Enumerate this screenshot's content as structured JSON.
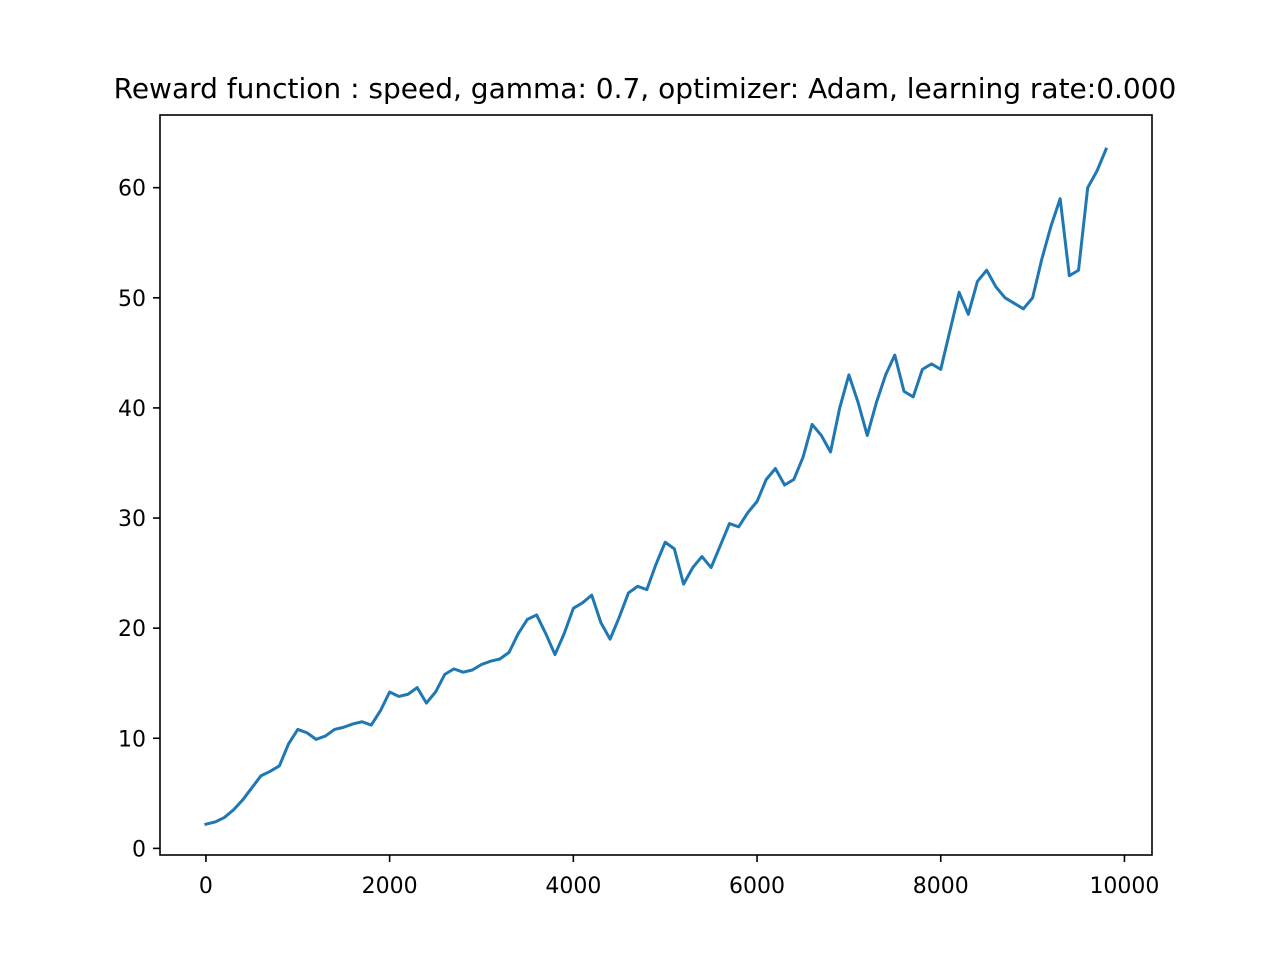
{
  "chart_data": {
    "type": "line",
    "title": "Reward function : speed, gamma: 0.7, optimizer: Adam, learning rate:0.000",
    "xlabel": "",
    "ylabel": "",
    "xlim": [
      -500,
      10300
    ],
    "ylim": [
      -0.6,
      66.6
    ],
    "xticks": [
      0,
      2000,
      4000,
      6000,
      8000,
      10000
    ],
    "xtick_labels": [
      "0",
      "2000",
      "4000",
      "6000",
      "8000",
      "10000"
    ],
    "yticks": [
      0,
      10,
      20,
      30,
      40,
      50,
      60
    ],
    "ytick_labels": [
      "0",
      "10",
      "20",
      "30",
      "40",
      "50",
      "60"
    ],
    "grid": false,
    "legend": "none",
    "series": [
      {
        "color": "#1f77b4",
        "x": [
          0,
          100,
          200,
          300,
          400,
          500,
          600,
          700,
          800,
          900,
          1000,
          1100,
          1200,
          1300,
          1400,
          1500,
          1600,
          1700,
          1800,
          1900,
          2000,
          2100,
          2200,
          2300,
          2400,
          2500,
          2600,
          2700,
          2800,
          2900,
          3000,
          3100,
          3200,
          3300,
          3400,
          3500,
          3600,
          3700,
          3800,
          3900,
          4000,
          4100,
          4200,
          4300,
          4400,
          4500,
          4600,
          4700,
          4800,
          4900,
          5000,
          5100,
          5200,
          5300,
          5400,
          5500,
          5600,
          5700,
          5800,
          5900,
          6000,
          6100,
          6200,
          6300,
          6400,
          6500,
          6600,
          6700,
          6800,
          6900,
          7000,
          7100,
          7200,
          7300,
          7400,
          7500,
          7600,
          7700,
          7800,
          7900,
          8000,
          8100,
          8200,
          8300,
          8400,
          8500,
          8600,
          8700,
          8800,
          8900,
          9000,
          9100,
          9200,
          9300,
          9400,
          9500,
          9600,
          9700,
          9800
        ],
        "y": [
          2.2,
          2.4,
          2.8,
          3.5,
          4.4,
          5.5,
          6.6,
          7.0,
          7.5,
          9.5,
          10.8,
          10.5,
          9.9,
          10.2,
          10.8,
          11.0,
          11.3,
          11.5,
          11.2,
          12.5,
          14.2,
          13.8,
          14.0,
          14.6,
          13.2,
          14.2,
          15.8,
          16.3,
          16.0,
          16.2,
          16.7,
          17.0,
          17.2,
          17.8,
          19.5,
          20.8,
          21.2,
          19.5,
          17.6,
          19.5,
          21.8,
          22.3,
          23.0,
          20.5,
          19.0,
          21.0,
          23.2,
          23.8,
          23.5,
          25.8,
          27.8,
          27.2,
          24.0,
          25.5,
          26.5,
          25.5,
          27.5,
          29.5,
          29.2,
          30.5,
          31.5,
          33.5,
          34.5,
          33.0,
          33.5,
          35.5,
          38.5,
          37.5,
          36.0,
          40.0,
          43.0,
          40.5,
          37.5,
          40.5,
          43.0,
          44.8,
          41.5,
          41.0,
          43.5,
          44.0,
          43.5,
          47.0,
          50.5,
          48.5,
          51.5,
          52.5,
          51.0,
          50.0,
          49.5,
          49.0,
          50.0,
          53.5,
          56.5,
          59.0,
          52.0,
          52.5,
          60.0,
          61.5,
          63.5
        ]
      }
    ]
  }
}
